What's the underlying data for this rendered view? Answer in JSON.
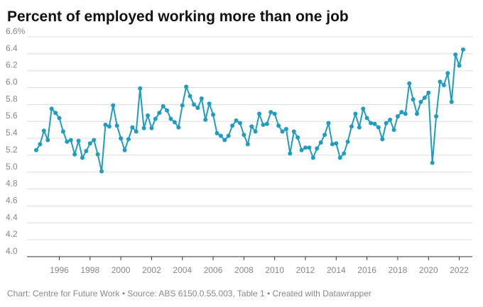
{
  "chart_data": {
    "type": "line",
    "title": "Percent of employed working more than one job",
    "footer": "Chart: Centre for Future Work • Source: ABS 6150.0.55.003, Table 1 • Created with Datawrapper",
    "x": [
      1994.5,
      1994.75,
      1995,
      1995.25,
      1995.5,
      1995.75,
      1996,
      1996.25,
      1996.5,
      1996.75,
      1997,
      1997.25,
      1997.5,
      1997.75,
      1998,
      1998.25,
      1998.5,
      1998.75,
      1999,
      1999.25,
      1999.5,
      1999.75,
      2000,
      2000.25,
      2000.5,
      2000.75,
      2001,
      2001.25,
      2001.5,
      2001.75,
      2002,
      2002.25,
      2002.5,
      2002.75,
      2003,
      2003.25,
      2003.5,
      2003.75,
      2004,
      2004.25,
      2004.5,
      2004.75,
      2005,
      2005.25,
      2005.5,
      2005.75,
      2006,
      2006.25,
      2006.5,
      2006.75,
      2007,
      2007.25,
      2007.5,
      2007.75,
      2008,
      2008.25,
      2008.5,
      2008.75,
      2009,
      2009.25,
      2009.5,
      2009.75,
      2010,
      2010.25,
      2010.5,
      2010.75,
      2011,
      2011.25,
      2011.5,
      2011.75,
      2012,
      2012.25,
      2012.5,
      2012.75,
      2013,
      2013.25,
      2013.5,
      2013.75,
      2014,
      2014.25,
      2014.5,
      2014.75,
      2015,
      2015.25,
      2015.5,
      2015.75,
      2016,
      2016.25,
      2016.5,
      2016.75,
      2017,
      2017.25,
      2017.5,
      2017.75,
      2018,
      2018.25,
      2018.5,
      2018.75,
      2019,
      2019.25,
      2019.5,
      2019.75,
      2020,
      2020.25,
      2020.5,
      2020.75,
      2021,
      2021.25,
      2021.5,
      2021.75,
      2022,
      2022.25
    ],
    "series": [
      {
        "color": "#1f9cc2",
        "values": [
          5.26,
          5.33,
          5.49,
          5.38,
          5.75,
          5.7,
          5.64,
          5.48,
          5.36,
          5.38,
          5.21,
          5.37,
          5.17,
          5.25,
          5.34,
          5.38,
          5.21,
          5.01,
          5.56,
          5.54,
          5.79,
          5.55,
          5.4,
          5.26,
          5.39,
          5.53,
          5.48,
          5.99,
          5.52,
          5.67,
          5.52,
          5.63,
          5.7,
          5.78,
          5.73,
          5.63,
          5.59,
          5.53,
          5.79,
          6.01,
          5.9,
          5.8,
          5.76,
          5.87,
          5.62,
          5.81,
          5.68,
          5.46,
          5.43,
          5.38,
          5.43,
          5.55,
          5.61,
          5.58,
          5.44,
          5.33,
          5.54,
          5.48,
          5.69,
          5.56,
          5.57,
          5.71,
          5.69,
          5.55,
          5.48,
          5.51,
          5.22,
          5.48,
          5.41,
          5.26,
          5.29,
          5.29,
          5.17,
          5.28,
          5.35,
          5.44,
          5.58,
          5.33,
          5.34,
          5.17,
          5.22,
          5.36,
          5.54,
          5.69,
          5.53,
          5.75,
          5.64,
          5.58,
          5.57,
          5.53,
          5.39,
          5.58,
          5.62,
          5.5,
          5.66,
          5.71,
          5.69,
          6.05,
          5.86,
          5.69,
          5.83,
          5.88,
          5.94,
          5.11,
          5.66,
          6.07,
          6.03,
          6.17,
          5.83,
          6.39,
          6.26,
          6.45
        ]
      }
    ],
    "xlim": [
      1993.9,
      2022.85
    ],
    "xticks": [
      1996,
      1998,
      2000,
      2002,
      2004,
      2006,
      2008,
      2010,
      2012,
      2014,
      2016,
      2018,
      2020,
      2022
    ],
    "ylim": [
      4,
      6.6
    ],
    "yticks": [
      {
        "value": 4,
        "label": "4.0"
      },
      4.2,
      4.4,
      4.6,
      4.8,
      {
        "value": 5,
        "label": "5.0"
      },
      5.2,
      5.4,
      5.6,
      5.8,
      {
        "value": 6,
        "label": "6.0"
      },
      6.2,
      6.4,
      {
        "value": 6.6,
        "label": "6.6%"
      }
    ],
    "grid": true
  }
}
